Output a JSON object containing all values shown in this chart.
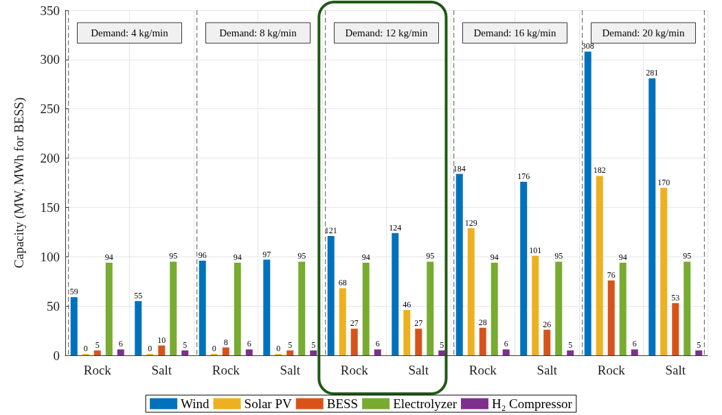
{
  "chart_data": {
    "type": "bar",
    "ylabel": "Capacity (MW, MWh for BESS)",
    "categories": [
      "Rock",
      "Salt",
      "Rock",
      "Salt",
      "Rock",
      "Salt",
      "Rock",
      "Salt",
      "Rock",
      "Salt"
    ],
    "series": [
      {
        "name": "Wind",
        "color": "#0072bd",
        "values": [
          59,
          55,
          96,
          97,
          121,
          124,
          184,
          176,
          308,
          281
        ]
      },
      {
        "name": "Solar PV",
        "color": "#edb120",
        "values": [
          0,
          0,
          0,
          0,
          68,
          46,
          129,
          101,
          182,
          170
        ]
      },
      {
        "name": "BESS",
        "color": "#d95319",
        "values": [
          5,
          10,
          8,
          5,
          27,
          27,
          28,
          26,
          76,
          53
        ]
      },
      {
        "name": "Electrolyzer",
        "color": "#77ac30",
        "values": [
          94,
          95,
          94,
          95,
          94,
          95,
          94,
          95,
          94,
          95
        ]
      },
      {
        "name": "H₂ Compressor",
        "color": "#7e2f8e",
        "values": [
          6,
          5,
          6,
          5,
          6,
          5,
          6,
          5,
          6,
          5
        ]
      }
    ],
    "annotations": [
      "Demand: 4 kg/min",
      "Demand: 8 kg/min",
      "Demand: 12 kg/min",
      "Demand: 16 kg/min",
      "Demand: 20 kg/min"
    ],
    "ylim": [
      0,
      350
    ],
    "yticks": [
      0,
      50,
      100,
      150,
      200,
      250,
      300,
      350
    ],
    "data_labels": true,
    "grid": true,
    "legend": "bottom"
  }
}
